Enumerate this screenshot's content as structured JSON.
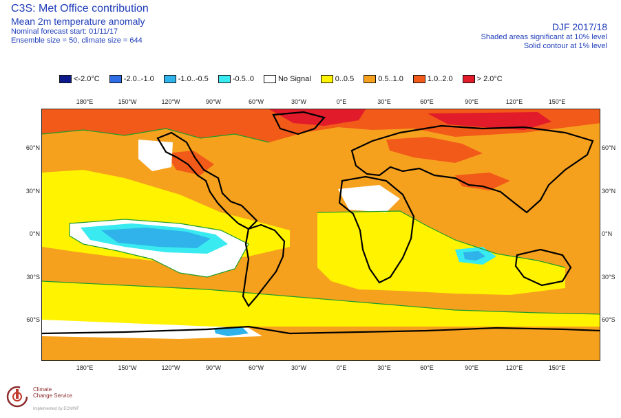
{
  "header": {
    "title": "C3S: Met Office contribution",
    "subtitle": "Mean 2m temperature anomaly",
    "forecast_start": "Nominal forecast start: 01/11/17",
    "ensemble": "Ensemble size = 50, climate size = 644",
    "period": "DJF 2017/18",
    "significance_shaded": "Shaded areas significant at 10% level",
    "significance_contour": "Solid contour at 1% level"
  },
  "legend": [
    {
      "label": "<-2.0°C",
      "color": "#0d1a8c"
    },
    {
      "label": "-2.0..-1.0",
      "color": "#2f6de6"
    },
    {
      "label": "-1.0..-0.5",
      "color": "#2fb3ea"
    },
    {
      "label": "-0.5..0",
      "color": "#39eaf0"
    },
    {
      "label": "No Signal",
      "color": "#ffffff"
    },
    {
      "label": "0..0.5",
      "color": "#fff300"
    },
    {
      "label": "0.5..1.0",
      "color": "#f6a11e"
    },
    {
      "label": "1.0..2.0",
      "color": "#f15a18"
    },
    {
      "label": "> 2.0°C",
      "color": "#e21b2b"
    }
  ],
  "map": {
    "lon_labels": [
      "180°E",
      "150°W",
      "120°W",
      "90°W",
      "60°W",
      "30°W",
      "0°E",
      "30°E",
      "60°E",
      "90°E",
      "120°E",
      "150°E"
    ],
    "lat_labels": [
      "60°N",
      "30°N",
      "0°N",
      "30°S",
      "60°S"
    ],
    "significance_contour_color": "#1c9b2a",
    "coastline_color": "#000000"
  },
  "logo": {
    "line1": "Climate",
    "line2": "Change Service",
    "tagline": "Implemented by ECMWF"
  }
}
